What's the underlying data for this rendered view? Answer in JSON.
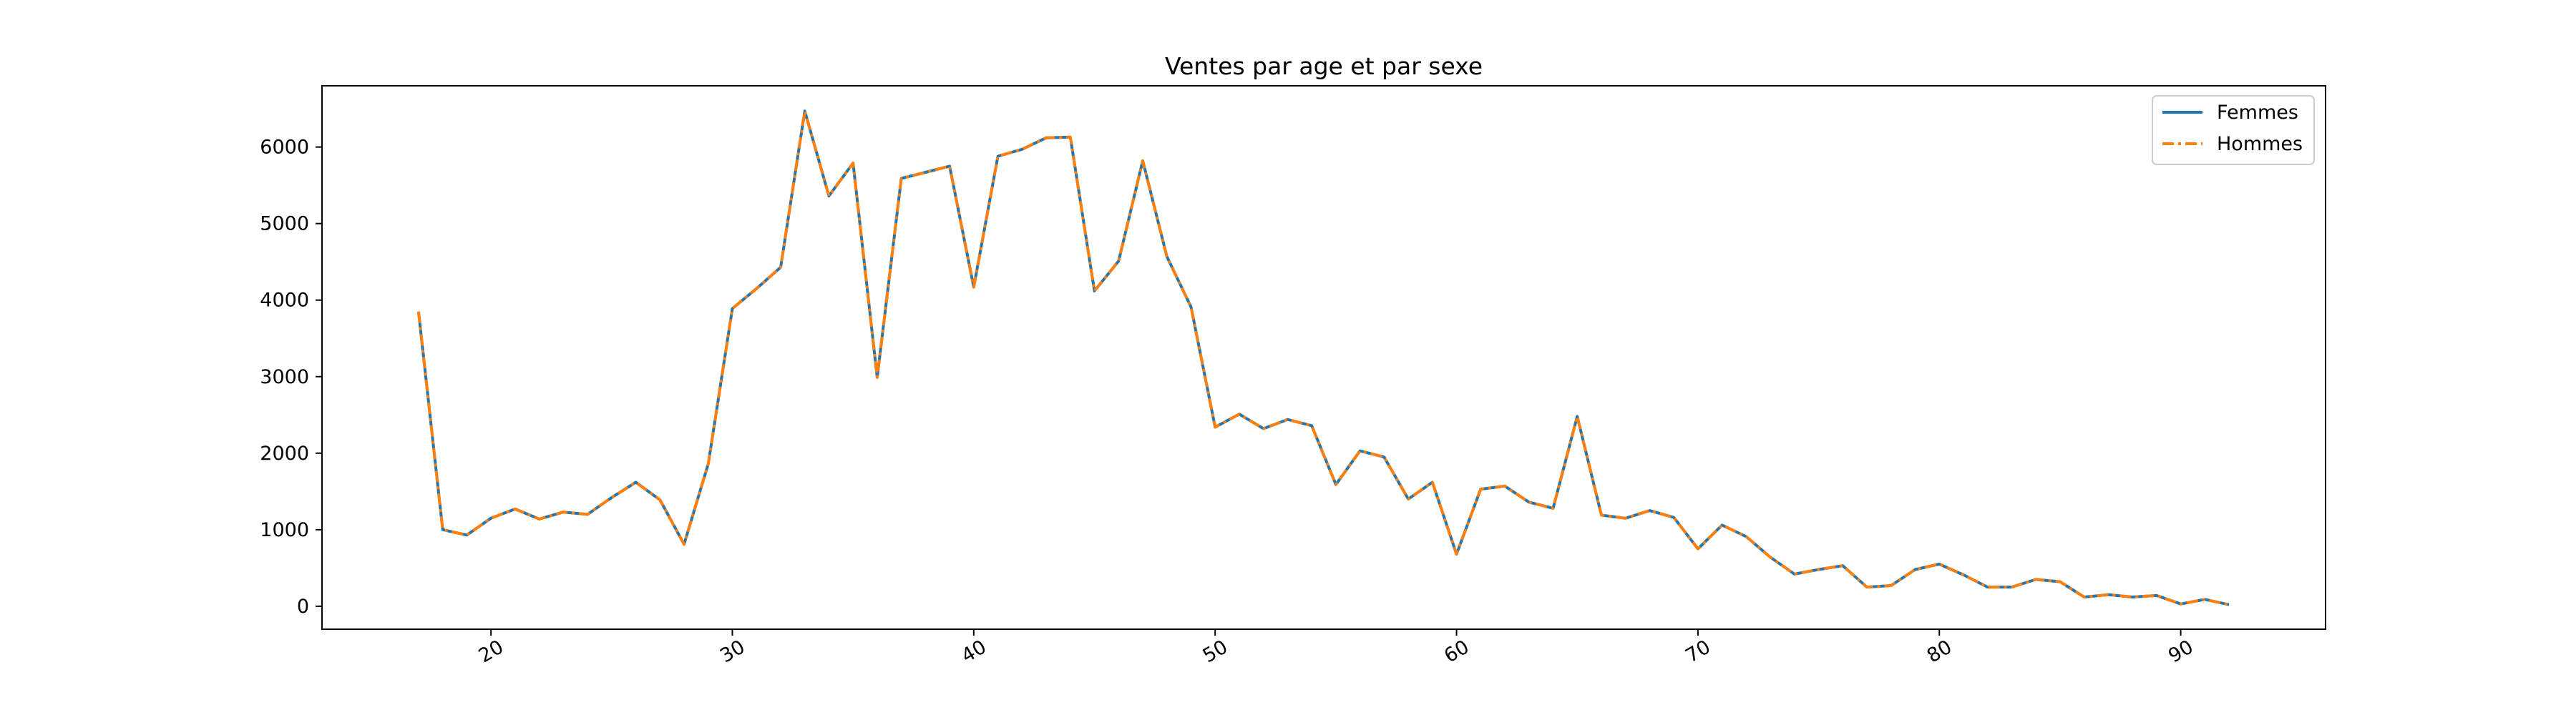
{
  "chart_data": {
    "type": "line",
    "title": "Ventes par age et par sexe",
    "xlabel": "",
    "ylabel": "",
    "xlim": [
      13,
      96
    ],
    "ylim": [
      -300,
      6800
    ],
    "x_ticks": [
      20,
      30,
      40,
      50,
      60,
      70,
      80,
      90
    ],
    "y_ticks": [
      0,
      1000,
      2000,
      3000,
      4000,
      5000,
      6000
    ],
    "x_tick_rotation": 30,
    "grid": false,
    "legend_placement": "upper-right",
    "x": [
      17,
      18,
      19,
      20,
      21,
      22,
      23,
      24,
      25,
      26,
      27,
      28,
      29,
      30,
      31,
      32,
      33,
      34,
      35,
      36,
      37,
      38,
      39,
      40,
      41,
      42,
      43,
      44,
      45,
      46,
      47,
      48,
      49,
      50,
      51,
      52,
      53,
      54,
      55,
      56,
      57,
      58,
      59,
      60,
      61,
      62,
      63,
      64,
      65,
      66,
      67,
      68,
      69,
      70,
      71,
      72,
      73,
      74,
      75,
      76,
      77,
      78,
      79,
      80,
      81,
      82,
      83,
      84,
      85,
      86,
      87,
      88,
      89,
      90,
      91,
      92
    ],
    "series": [
      {
        "name": "Femmes",
        "color": "#1f77b4",
        "style": "solid",
        "values": [
          3850,
          1000,
          930,
          1150,
          1270,
          1140,
          1230,
          1200,
          1420,
          1620,
          1390,
          810,
          1860,
          3890,
          4150,
          4430,
          6470,
          5360,
          5790,
          2990,
          5590,
          5670,
          5750,
          4170,
          5880,
          5970,
          6120,
          6130,
          4120,
          4510,
          5820,
          4570,
          3910,
          2340,
          2510,
          2320,
          2440,
          2360,
          1590,
          2030,
          1950,
          1400,
          1620,
          680,
          1530,
          1570,
          1360,
          1280,
          2480,
          1190,
          1150,
          1250,
          1160,
          750,
          1060,
          910,
          640,
          420,
          480,
          530,
          250,
          270,
          480,
          550,
          410,
          250,
          250,
          350,
          320,
          120,
          150,
          120,
          140,
          30,
          90,
          20
        ]
      },
      {
        "name": "Hommes",
        "color": "#ff7f0e",
        "style": "dashdot",
        "values": [
          3850,
          1000,
          930,
          1150,
          1270,
          1140,
          1230,
          1200,
          1420,
          1620,
          1390,
          810,
          1860,
          3890,
          4150,
          4430,
          6470,
          5360,
          5790,
          2990,
          5590,
          5670,
          5750,
          4170,
          5880,
          5970,
          6120,
          6130,
          4120,
          4510,
          5820,
          4570,
          3910,
          2340,
          2510,
          2320,
          2440,
          2360,
          1590,
          2030,
          1950,
          1400,
          1620,
          680,
          1530,
          1570,
          1360,
          1280,
          2480,
          1190,
          1150,
          1250,
          1160,
          750,
          1060,
          910,
          640,
          420,
          480,
          530,
          250,
          270,
          480,
          550,
          410,
          250,
          250,
          350,
          320,
          120,
          150,
          120,
          140,
          30,
          90,
          20
        ]
      }
    ]
  }
}
